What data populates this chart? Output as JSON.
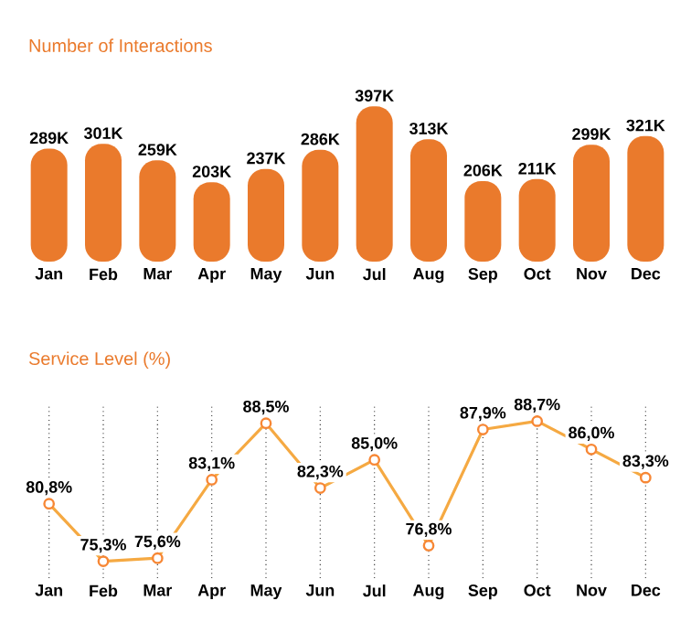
{
  "chart_data": [
    {
      "type": "bar",
      "title": "Number of Interactions",
      "categories": [
        "Jan",
        "Feb",
        "Mar",
        "Apr",
        "May",
        "Jun",
        "Jul",
        "Aug",
        "Sep",
        "Oct",
        "Nov",
        "Dec"
      ],
      "values": [
        289,
        301,
        259,
        203,
        237,
        286,
        397,
        313,
        206,
        211,
        299,
        321
      ],
      "value_labels": [
        "289K",
        "301K",
        "259K",
        "203K",
        "237K",
        "286K",
        "397K",
        "313K",
        "206K",
        "211K",
        "299K",
        "321K"
      ],
      "color": "#ea7a2c"
    },
    {
      "type": "line",
      "title": "Service Level (%)",
      "categories": [
        "Jan",
        "Feb",
        "Mar",
        "Apr",
        "May",
        "Jun",
        "Jul",
        "Aug",
        "Sep",
        "Oct",
        "Nov",
        "Dec"
      ],
      "values": [
        80.8,
        75.3,
        75.6,
        83.1,
        88.5,
        82.3,
        85.0,
        76.8,
        87.9,
        88.7,
        86.0,
        83.3
      ],
      "value_labels": [
        "80,8%",
        "75,3%",
        "75,6%",
        "83,1%",
        "88,5%",
        "82,3%",
        "85,0%",
        "76,8%",
        "87,9%",
        "88,7%",
        "86,0%",
        "83,3%"
      ],
      "color": "#f5a942",
      "grid": "x",
      "marker": "circle"
    }
  ]
}
